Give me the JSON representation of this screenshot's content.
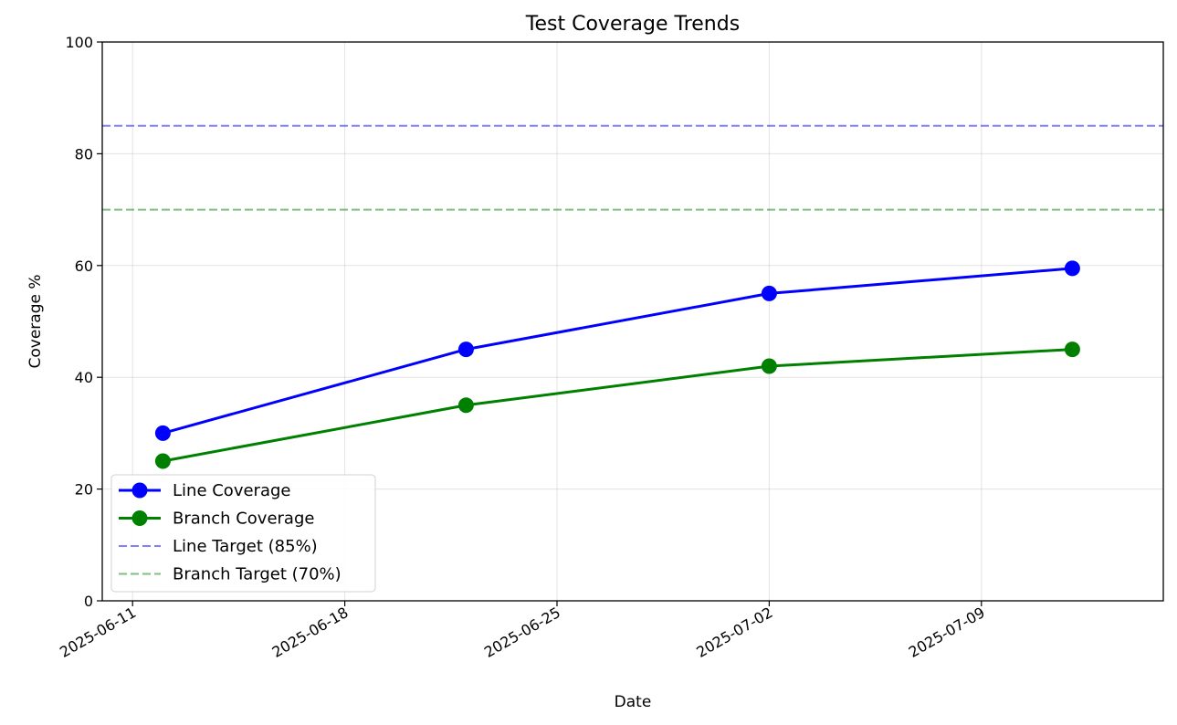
{
  "chart_data": {
    "type": "line",
    "title": "Test Coverage Trends",
    "xlabel": "Date",
    "ylabel": "Coverage %",
    "ylim": [
      0,
      100
    ],
    "xlim": [
      "2025-06-10",
      "2025-07-15"
    ],
    "grid": true,
    "legend_position": "lower-left",
    "yticks": [
      "0",
      "20",
      "40",
      "60",
      "80",
      "100"
    ],
    "xticks": [
      "2025-06-11",
      "2025-06-18",
      "2025-06-25",
      "2025-07-02",
      "2025-07-09"
    ],
    "series": [
      {
        "name": "Line Coverage",
        "color": "#0000ff",
        "x": [
          "2025-06-12",
          "2025-06-22",
          "2025-07-02",
          "2025-07-12"
        ],
        "values": [
          30,
          45,
          55,
          59.5
        ]
      },
      {
        "name": "Branch Coverage",
        "color": "#008000",
        "x": [
          "2025-06-12",
          "2025-06-22",
          "2025-07-02",
          "2025-07-12"
        ],
        "values": [
          25,
          35,
          42,
          45
        ]
      }
    ],
    "reference_lines": [
      {
        "name": "Line Target (85%)",
        "value": 85,
        "color": "#0000ff"
      },
      {
        "name": "Branch Target (70%)",
        "value": 70,
        "color": "#008000"
      }
    ]
  }
}
